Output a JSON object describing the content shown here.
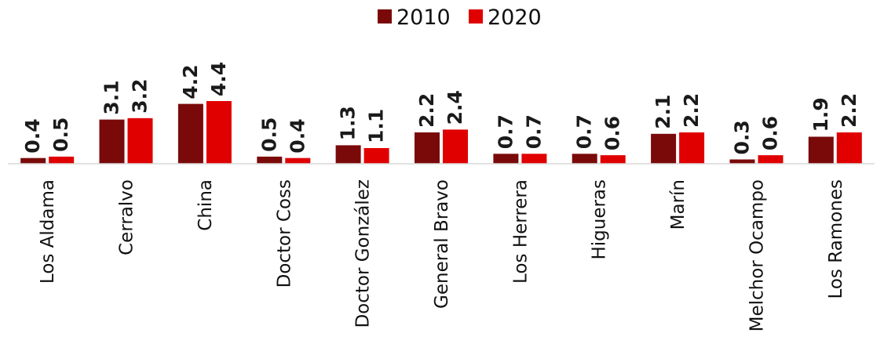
{
  "chart_data": {
    "type": "bar",
    "title": "",
    "xlabel": "",
    "ylabel": "",
    "categories": [
      "Los Aldama",
      "Cerralvo",
      "China",
      "Doctor Coss",
      "Doctor González",
      "General Bravo",
      "Los Herrera",
      "Higueras",
      "Marín",
      "Melchor Ocampo",
      "Los Ramones"
    ],
    "series": [
      {
        "name": "2010",
        "color": "#7a0a0a",
        "values": [
          0.4,
          3.1,
          4.2,
          0.5,
          1.3,
          2.2,
          0.7,
          0.7,
          2.1,
          0.3,
          1.9
        ]
      },
      {
        "name": "2020",
        "color": "#e00000",
        "values": [
          0.5,
          3.2,
          4.4,
          0.4,
          1.1,
          2.4,
          0.7,
          0.6,
          2.2,
          0.6,
          2.2
        ]
      }
    ],
    "value_labels": [
      [
        "0.4",
        "3.1",
        "4.2",
        "0.5",
        "1.3",
        "2.2",
        "0.7",
        "0.7",
        "2.1",
        "0.3",
        "1.9"
      ],
      [
        "0.5",
        "3.2",
        "4.4",
        "0.4",
        "1.1",
        "2.4",
        "0.7",
        "0.6",
        "2.2",
        "0.6",
        "2.2"
      ]
    ],
    "ylim": [
      0,
      4.4
    ],
    "grid": false,
    "legend_position": "top-center"
  }
}
